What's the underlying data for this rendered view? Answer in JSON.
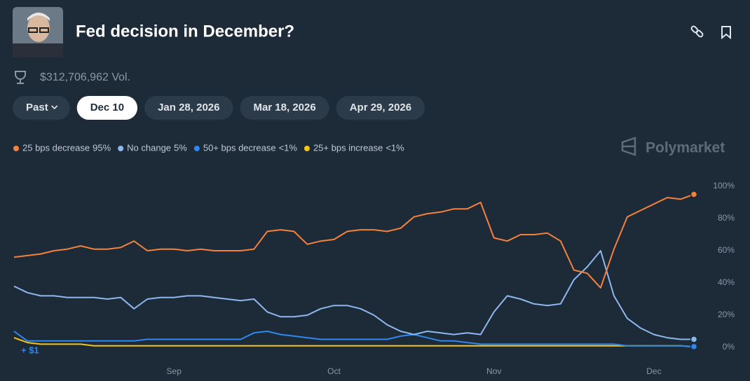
{
  "header": {
    "title": "Fed decision in December?",
    "volume": "$312,706,962 Vol."
  },
  "buttons": [
    "Past",
    "Dec 10",
    "Jan 28, 2026",
    "Mar 18, 2026",
    "Apr 29, 2026"
  ],
  "watermark": "Polymarket",
  "chart_data": {
    "type": "line",
    "annotation": "+ $1",
    "categories": [
      null,
      null,
      null,
      null,
      null,
      null,
      null,
      null,
      null,
      null,
      null,
      null,
      "Sep",
      null,
      null,
      null,
      null,
      null,
      null,
      null,
      null,
      null,
      null,
      null,
      "Oct",
      null,
      null,
      null,
      null,
      null,
      null,
      null,
      null,
      null,
      null,
      null,
      "Nov",
      null,
      null,
      null,
      null,
      null,
      null,
      null,
      null,
      null,
      null,
      null,
      "Dec",
      null,
      null,
      null
    ],
    "series": [
      {
        "name": "25 bps decrease",
        "color": "#f5813c",
        "values": [
          56,
          57,
          58,
          60,
          61,
          63,
          61,
          61,
          62,
          66,
          60,
          61,
          61,
          60,
          61,
          60,
          60,
          60,
          61,
          72,
          73,
          72,
          64,
          66,
          67,
          72,
          73,
          73,
          72,
          74,
          81,
          83,
          84,
          86,
          86,
          90,
          68,
          66,
          70,
          70,
          71,
          66,
          48,
          46,
          37,
          61,
          81,
          85,
          89,
          93,
          92,
          95
        ],
        "value_labels": [
          null,
          null,
          null,
          null,
          null,
          null,
          null,
          null,
          null,
          null,
          null,
          null,
          null,
          null,
          null,
          null,
          null,
          null,
          null,
          null,
          null,
          null,
          null,
          null,
          null,
          null,
          null,
          null,
          null,
          null,
          null,
          null,
          null,
          null,
          null,
          null,
          null,
          null,
          null,
          null,
          null,
          null,
          null,
          null,
          null,
          null,
          null,
          null,
          null,
          null,
          null,
          "95%"
        ]
      },
      {
        "name": "No change",
        "color": "#8db8ee",
        "values": [
          38,
          34,
          32,
          32,
          31,
          31,
          31,
          30,
          31,
          24,
          30,
          31,
          31,
          32,
          32,
          31,
          30,
          29,
          30,
          22,
          19,
          19,
          20,
          24,
          26,
          26,
          24,
          20,
          14,
          10,
          8,
          10,
          9,
          8,
          9,
          8,
          22,
          32,
          30,
          27,
          26,
          27,
          42,
          50,
          60,
          32,
          18,
          12,
          8,
          6,
          5,
          5
        ],
        "value_labels": [
          null,
          null,
          null,
          null,
          null,
          null,
          null,
          null,
          null,
          null,
          null,
          null,
          null,
          null,
          null,
          null,
          null,
          null,
          null,
          null,
          null,
          null,
          null,
          null,
          null,
          null,
          null,
          null,
          null,
          null,
          null,
          null,
          null,
          null,
          null,
          null,
          null,
          null,
          null,
          null,
          null,
          null,
          null,
          null,
          null,
          null,
          null,
          null,
          null,
          null,
          null,
          "5%"
        ]
      },
      {
        "name": "50+ bps decrease",
        "color": "#2f88f0",
        "values": [
          10,
          4,
          4,
          4,
          4,
          4,
          4,
          4,
          4,
          4,
          5,
          5,
          5,
          5,
          5,
          5,
          5,
          5,
          9,
          10,
          8,
          7,
          6,
          5,
          5,
          5,
          5,
          5,
          5,
          7,
          8,
          6,
          4,
          4,
          3,
          2,
          2,
          2,
          2,
          2,
          2,
          2,
          2,
          2,
          2,
          2,
          1,
          1,
          1,
          1,
          1,
          0.5
        ],
        "value_labels": [
          null,
          null,
          null,
          null,
          null,
          null,
          null,
          null,
          null,
          null,
          null,
          null,
          null,
          null,
          null,
          null,
          null,
          null,
          null,
          null,
          null,
          null,
          null,
          null,
          null,
          null,
          null,
          null,
          null,
          null,
          null,
          null,
          null,
          null,
          null,
          null,
          null,
          null,
          null,
          null,
          null,
          null,
          null,
          null,
          null,
          null,
          null,
          null,
          null,
          null,
          null,
          "<1%"
        ]
      },
      {
        "name": "25+ bps increase",
        "color": "#f2c518",
        "values": [
          6,
          3,
          2,
          2,
          2,
          2,
          1,
          1,
          1,
          1,
          1,
          1,
          1,
          1,
          1,
          1,
          1,
          1,
          1,
          1,
          1,
          1,
          1,
          1,
          1,
          1,
          1,
          1,
          1,
          1,
          1,
          1,
          1,
          1,
          1,
          1,
          1,
          1,
          1,
          1,
          1,
          1,
          1,
          1,
          1,
          1,
          1,
          1,
          1,
          1,
          1,
          0.3
        ],
        "value_labels": [
          null,
          null,
          null,
          null,
          null,
          null,
          null,
          null,
          null,
          null,
          null,
          null,
          null,
          null,
          null,
          null,
          null,
          null,
          null,
          null,
          null,
          null,
          null,
          null,
          null,
          null,
          null,
          null,
          null,
          null,
          null,
          null,
          null,
          null,
          null,
          null,
          null,
          null,
          null,
          null,
          null,
          null,
          null,
          null,
          null,
          null,
          null,
          null,
          null,
          null,
          null,
          "<1%"
        ]
      }
    ],
    "ylim": [
      0,
      100
    ],
    "yticks": [
      {
        "value": 0,
        "label": "0%"
      },
      {
        "value": 20,
        "label": "20%"
      },
      {
        "value": 40,
        "label": "40%"
      },
      {
        "value": 60,
        "label": "60%"
      },
      {
        "value": 80,
        "label": "80%"
      },
      {
        "value": 100,
        "label": "100%"
      }
    ],
    "grid": false
  }
}
